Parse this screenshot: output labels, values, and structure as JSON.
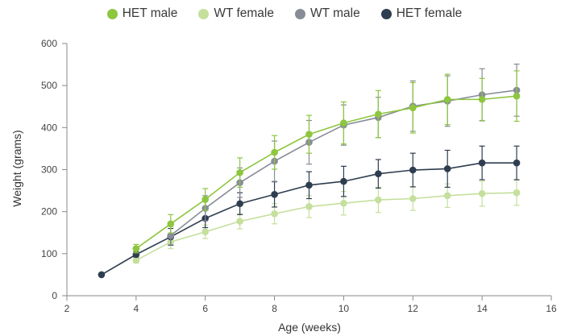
{
  "chart_data": {
    "type": "line",
    "xlabel": "Age (weeks)",
    "ylabel": "Weight (grams)",
    "xlim": [
      2,
      16
    ],
    "ylim": [
      0,
      600
    ],
    "xticks": [
      2,
      4,
      6,
      8,
      10,
      12,
      14,
      16
    ],
    "yticks": [
      0,
      100,
      200,
      300,
      400,
      500,
      600
    ],
    "grid": false,
    "legend_position": "top-center",
    "series": [
      {
        "name": "WT female",
        "color": "#c5df9d",
        "x": [
          4,
          5,
          6,
          7,
          8,
          9,
          10,
          11,
          12,
          13,
          14,
          15
        ],
        "y": [
          84,
          128,
          152,
          177,
          195,
          212,
          220,
          228,
          231,
          238,
          243,
          245
        ],
        "err": [
          6,
          16,
          16,
          18,
          24,
          26,
          28,
          30,
          28,
          28,
          30,
          30
        ]
      },
      {
        "name": "HET female",
        "color": "#2e3d4f",
        "x": [
          3,
          4,
          5,
          6,
          7,
          8,
          9,
          10,
          11,
          12,
          13,
          14,
          15
        ],
        "y": [
          50,
          98,
          140,
          184,
          219,
          241,
          263,
          272,
          290,
          299,
          302,
          316,
          316
        ],
        "err": [
          0,
          6,
          20,
          22,
          26,
          30,
          32,
          36,
          34,
          40,
          44,
          40,
          40
        ]
      },
      {
        "name": "WT male",
        "color": "#878c97",
        "x": [
          5,
          6,
          7,
          8,
          9,
          10,
          11,
          12,
          13,
          14,
          15
        ],
        "y": [
          143,
          208,
          269,
          320,
          365,
          406,
          424,
          451,
          463,
          478,
          489
        ],
        "err": [
          22,
          30,
          35,
          48,
          52,
          48,
          48,
          60,
          60,
          62,
          62
        ]
      },
      {
        "name": "HET male",
        "color": "#8dc63f",
        "x": [
          4,
          5,
          6,
          7,
          8,
          9,
          10,
          11,
          12,
          13,
          14,
          15
        ],
        "y": [
          112,
          171,
          229,
          293,
          341,
          384,
          411,
          432,
          447,
          467,
          467,
          475
        ],
        "err": [
          10,
          22,
          26,
          35,
          40,
          45,
          50,
          56,
          60,
          60,
          50,
          60
        ]
      }
    ]
  },
  "legend": {
    "items": [
      {
        "label": "HET male",
        "color": "#8dc63f"
      },
      {
        "label": "WT female",
        "color": "#c5df9d"
      },
      {
        "label": "WT male",
        "color": "#878c97"
      },
      {
        "label": "HET female",
        "color": "#2e3d4f"
      }
    ]
  }
}
